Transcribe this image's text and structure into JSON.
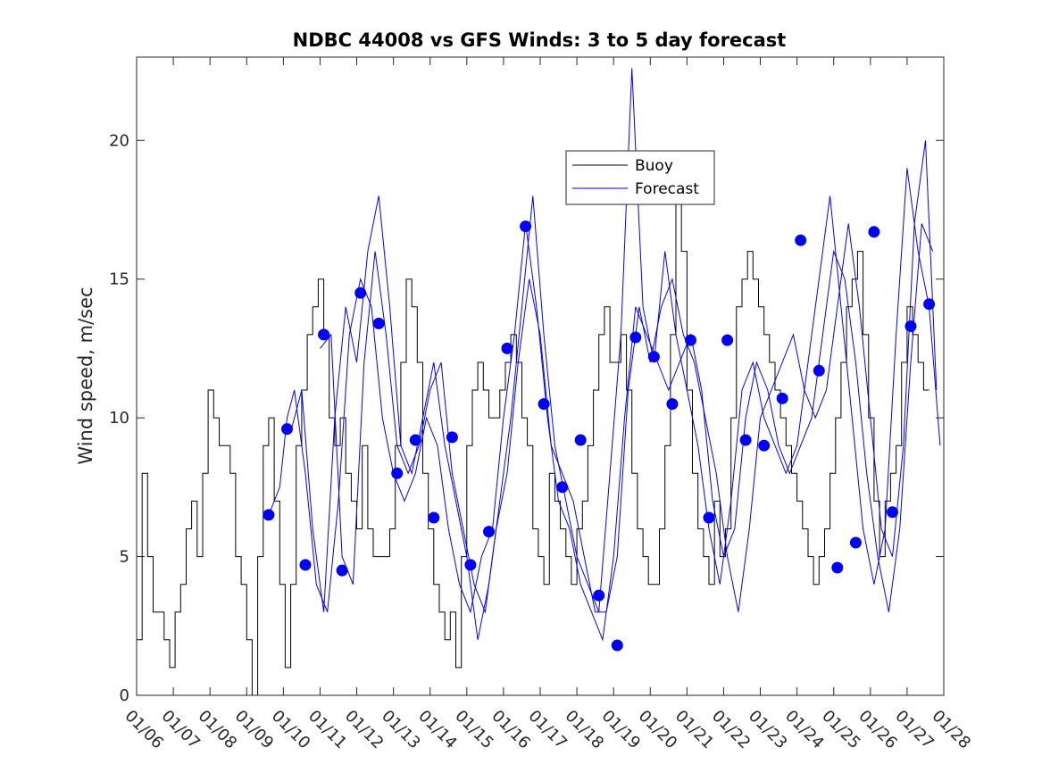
{
  "chart_data": {
    "type": "line",
    "title": "NDBC 44008 vs GFS Winds: 3 to 5 day forecast",
    "xlabel": "",
    "ylabel": "Wind speed, m/sec",
    "xlim_days": [
      0,
      22
    ],
    "ylim": [
      0,
      23
    ],
    "yticks": [
      0,
      5,
      10,
      15,
      20
    ],
    "ytick_labels": [
      "0",
      "5",
      "10",
      "15",
      "20"
    ],
    "xtick_labels": [
      "01/06",
      "01/07",
      "01/08",
      "01/09",
      "01/10",
      "01/11",
      "01/12",
      "01/13",
      "01/14",
      "01/15",
      "01/16",
      "01/17",
      "01/18",
      "01/19",
      "01/20",
      "01/21",
      "01/22",
      "01/23",
      "01/24",
      "01/25",
      "01/26",
      "01/27",
      "01/28"
    ],
    "legend": {
      "location": "top-center",
      "entries": [
        {
          "label": "Buoy",
          "color": "#000000"
        },
        {
          "label": "Forecast",
          "color": "#0000ff"
        }
      ]
    },
    "series": [
      {
        "name": "Buoy",
        "color": "#000000",
        "x": [
          0.0,
          0.15,
          0.3,
          0.45,
          0.6,
          0.75,
          0.9,
          1.05,
          1.2,
          1.35,
          1.5,
          1.65,
          1.8,
          1.95,
          2.1,
          2.25,
          2.4,
          2.55,
          2.7,
          2.85,
          3.0,
          3.15,
          3.3,
          3.45,
          3.6,
          3.75,
          3.9,
          4.05,
          4.2,
          4.35,
          4.5,
          4.65,
          4.8,
          4.95,
          5.1,
          5.25,
          5.4,
          5.55,
          5.7,
          5.85,
          6.0,
          6.15,
          6.3,
          6.45,
          6.6,
          6.75,
          6.9,
          7.05,
          7.2,
          7.35,
          7.5,
          7.65,
          7.8,
          7.95,
          8.1,
          8.25,
          8.4,
          8.55,
          8.7,
          8.85,
          9.0,
          9.15,
          9.3,
          9.45,
          9.6,
          9.75,
          9.9,
          10.05,
          10.2,
          10.35,
          10.5,
          10.65,
          10.8,
          10.95,
          11.1,
          11.25,
          11.4,
          11.55,
          11.7,
          11.85,
          12.0,
          12.15,
          12.3,
          12.45,
          12.6,
          12.75,
          12.9,
          13.05,
          13.2,
          13.35,
          13.5,
          13.65,
          13.8,
          13.95,
          14.1,
          14.25,
          14.4,
          14.55,
          14.7,
          14.85,
          15.0,
          15.15,
          15.3,
          15.45,
          15.6,
          15.75,
          15.9,
          16.05,
          16.2,
          16.35,
          16.5,
          16.65,
          16.8,
          16.95,
          17.1,
          17.25,
          17.4,
          17.55,
          17.7,
          17.85,
          18.0,
          18.15,
          18.3,
          18.45,
          18.6,
          18.75,
          18.9,
          19.05,
          19.2,
          19.35,
          19.5,
          19.65,
          19.8,
          19.95,
          20.1,
          20.25,
          20.4,
          20.55,
          20.7,
          20.85,
          21.0,
          21.15,
          21.3,
          21.45
        ],
        "values": [
          2,
          8,
          5,
          3,
          3,
          2,
          1,
          3,
          4,
          6,
          7,
          5,
          8,
          11,
          10,
          9,
          9,
          8,
          5,
          4,
          2,
          0,
          5,
          9,
          10,
          7,
          4,
          1,
          4,
          9,
          11,
          13,
          14,
          15,
          13,
          10,
          9,
          10,
          8,
          7,
          6,
          9,
          6,
          5,
          5,
          5,
          6,
          9,
          12,
          15,
          14,
          12,
          8,
          6,
          4,
          3,
          2,
          3,
          1,
          5,
          9,
          11,
          12,
          11,
          10,
          10,
          11,
          12,
          13,
          12,
          10,
          9,
          6,
          5,
          4,
          8,
          7,
          6,
          5,
          4,
          6,
          7,
          9,
          11,
          13,
          14,
          12,
          12,
          13,
          11,
          8,
          6,
          5,
          4,
          4,
          6,
          9,
          13,
          19,
          16,
          11,
          8,
          6,
          5,
          4,
          7,
          5,
          6,
          10,
          14,
          15,
          16,
          15,
          14,
          13,
          12,
          11,
          10,
          9,
          8,
          7,
          6,
          5,
          4,
          5,
          6,
          8,
          10,
          12,
          14,
          15,
          16,
          13,
          10,
          7,
          5,
          7,
          8,
          9,
          12,
          14,
          13,
          12,
          11
        ]
      },
      {
        "name": "Forecast",
        "color": "#0000ff",
        "runs": [
          {
            "x": [
              3.6,
              3.9,
              4.1,
              4.3,
              4.6,
              4.9,
              5.2,
              5.5,
              5.8,
              6.1,
              6.4,
              6.7,
              7.0,
              7.3,
              7.6,
              7.9,
              8.2,
              8.5,
              8.8,
              9.1,
              9.4,
              9.7,
              10.0,
              10.3,
              10.6,
              10.9,
              11.2,
              11.5,
              11.8,
              12.1,
              12.4,
              12.7,
              13.0,
              13.3,
              13.6,
              13.9,
              14.2,
              14.5,
              14.8,
              15.1,
              15.4,
              15.7,
              16.0,
              16.3,
              16.6,
              16.9,
              17.2,
              17.5,
              17.8,
              18.1,
              18.4,
              18.7,
              19.0,
              19.3,
              19.6,
              19.9,
              20.2,
              20.5,
              20.8,
              21.1,
              21.4,
              21.7
            ],
            "values": [
              6.5,
              7.5,
              10,
              11,
              8,
              4,
              3,
              7,
              13,
              15,
              14,
              10,
              8,
              7,
              8,
              10,
              9,
              6,
              4,
              3,
              5,
              6,
              10,
              13,
              17,
              14,
              10,
              7,
              6,
              4,
              3,
              2,
              5,
              10,
              14,
              13,
              12,
              11,
              12,
              13,
              11,
              7,
              5,
              6,
              10,
              12,
              11,
              9,
              8,
              9,
              10,
              13,
              16,
              15,
              12,
              8,
              5,
              3,
              6,
              12,
              17,
              16
            ]
          },
          {
            "x": [
              4.2,
              4.5,
              4.8,
              5.1,
              5.4,
              5.7,
              6.0,
              6.3,
              6.6,
              6.9,
              7.2,
              7.5,
              7.8,
              8.1,
              8.4,
              8.7,
              9.0,
              9.3,
              9.6,
              9.9,
              10.2,
              10.5,
              10.8,
              11.1,
              11.4,
              11.7,
              12.0,
              12.3,
              12.6,
              12.9,
              13.2,
              13.5,
              13.8,
              14.1,
              14.4,
              14.7,
              15.0,
              15.3,
              15.6,
              15.9,
              16.2,
              16.5,
              16.8,
              17.1,
              17.4,
              17.7,
              18.0,
              18.3,
              18.6,
              18.9,
              19.2,
              19.5,
              19.8,
              20.1,
              20.4,
              20.7,
              21.0,
              21.3,
              21.6,
              21.9
            ],
            "values": [
              9.5,
              11,
              6,
              3,
              10,
              14,
              12,
              16,
              18,
              14,
              9,
              8,
              10,
              12,
              9,
              7,
              5,
              2,
              4,
              7,
              10,
              14,
              18,
              13,
              9,
              7,
              5,
              4,
              3,
              8,
              13,
              22.6,
              14,
              12,
              16,
              13,
              11,
              9,
              6,
              4,
              7,
              11,
              12,
              10,
              9,
              8,
              9,
              12,
              15,
              18,
              14,
              10,
              6,
              4,
              6,
              13,
              19,
              16,
              14,
              9
            ]
          },
          {
            "x": [
              5.0,
              5.3,
              5.6,
              5.9,
              6.2,
              6.5,
              6.8,
              7.1,
              7.4,
              7.7,
              8.0,
              8.3,
              8.6,
              8.9,
              9.2,
              9.5,
              9.8,
              10.1,
              10.4,
              10.7,
              11.0,
              11.3,
              11.6,
              11.9,
              12.2,
              12.5,
              12.8,
              13.1,
              13.4,
              13.7,
              14.0,
              14.3,
              14.6,
              14.9,
              15.2,
              15.5,
              15.8,
              16.1,
              16.4,
              16.7,
              17.0,
              17.3,
              17.6,
              17.9,
              18.2,
              18.5,
              18.8,
              19.1,
              19.4,
              19.7,
              20.0,
              20.3,
              20.6,
              20.9,
              21.2,
              21.5,
              21.8
            ],
            "values": [
              12.5,
              13,
              5,
              4,
              12,
              16,
              13,
              9,
              8,
              9,
              11,
              12,
              8,
              6,
              4,
              3,
              6,
              8,
              12,
              15,
              13,
              9,
              8,
              7,
              5,
              3,
              3,
              5,
              11,
              14,
              12,
              14,
              15,
              13,
              12,
              10,
              8,
              5,
              3,
              6,
              10,
              11,
              12,
              13,
              11,
              10,
              11,
              14,
              17,
              14,
              10,
              6,
              5,
              9,
              17,
              20,
              11
            ]
          }
        ]
      },
      {
        "name": "Forecast markers",
        "color": "#0000ff",
        "x": [
          3.6,
          4.1,
          4.6,
          5.1,
          5.6,
          6.1,
          6.6,
          7.1,
          7.6,
          8.1,
          8.6,
          9.1,
          9.6,
          10.1,
          10.6,
          11.1,
          11.6,
          12.1,
          12.6,
          13.1,
          13.6,
          14.1,
          14.6,
          15.1,
          15.6,
          16.1,
          16.6,
          17.1,
          17.6,
          18.1,
          18.6,
          19.1,
          19.6,
          20.1,
          20.6,
          21.1,
          21.6
        ],
        "values": [
          6.5,
          9.6,
          4.7,
          13,
          4.5,
          14.5,
          13.4,
          8,
          9.2,
          6.4,
          9.3,
          4.7,
          5.9,
          12.5,
          16.9,
          10.5,
          7.5,
          9.2,
          3.6,
          1.8,
          12.9,
          12.2,
          10.5,
          12.8,
          6.4,
          12.8,
          9.2,
          9,
          10.7,
          16.4,
          11.7,
          4.6,
          5.5,
          16.7,
          6.6,
          13.3,
          14.1
        ]
      }
    ]
  }
}
